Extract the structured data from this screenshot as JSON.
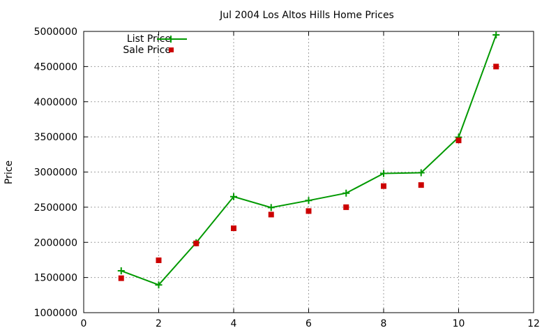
{
  "chart_data": {
    "type": "scatter",
    "title": "Jul 2004 Los Altos Hills Home Prices",
    "xlabel": "",
    "ylabel": "Price",
    "xlim": [
      0,
      12
    ],
    "ylim": [
      1000000,
      5000000
    ],
    "xticks": [
      0,
      2,
      4,
      6,
      8,
      10,
      12
    ],
    "yticks": [
      1000000,
      1500000,
      2000000,
      2500000,
      3000000,
      3500000,
      4000000,
      4500000,
      5000000
    ],
    "grid": true,
    "legend_position": "top-left",
    "series": [
      {
        "name": "List Price",
        "style": "line-plus",
        "color": "#009900",
        "x": [
          1,
          2,
          3,
          4,
          5,
          6,
          7,
          8,
          9,
          10,
          11
        ],
        "y": [
          1595000,
          1395000,
          1995000,
          2650000,
          2495000,
          2595000,
          2700000,
          2980000,
          2990000,
          3495000,
          4950000
        ]
      },
      {
        "name": "Sale Price",
        "style": "square",
        "color": "#cc0000",
        "x": [
          1,
          2,
          3,
          4,
          5,
          6,
          7,
          8,
          9,
          10,
          11
        ],
        "y": [
          1490000,
          1745000,
          1985000,
          2200000,
          2395000,
          2445000,
          2500000,
          2800000,
          2815000,
          3450000,
          4500000
        ]
      }
    ]
  }
}
